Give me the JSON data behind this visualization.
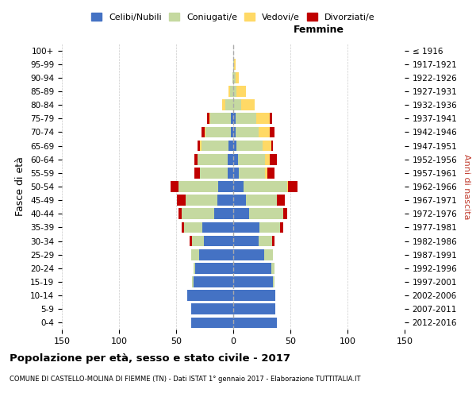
{
  "age_groups": [
    "0-4",
    "5-9",
    "10-14",
    "15-19",
    "20-24",
    "25-29",
    "30-34",
    "35-39",
    "40-44",
    "45-49",
    "50-54",
    "55-59",
    "60-64",
    "65-69",
    "70-74",
    "75-79",
    "80-84",
    "85-89",
    "90-94",
    "95-99",
    "100+"
  ],
  "birth_years": [
    "2012-2016",
    "2007-2011",
    "2002-2006",
    "1997-2001",
    "1992-1996",
    "1987-1991",
    "1982-1986",
    "1977-1981",
    "1972-1976",
    "1967-1971",
    "1962-1966",
    "1957-1961",
    "1952-1956",
    "1947-1951",
    "1942-1946",
    "1937-1941",
    "1932-1936",
    "1927-1931",
    "1922-1926",
    "1917-1921",
    "≤ 1916"
  ],
  "males": {
    "celibi": [
      37,
      37,
      40,
      35,
      33,
      30,
      26,
      27,
      17,
      14,
      13,
      5,
      5,
      4,
      2,
      2,
      0,
      0,
      0,
      0,
      0
    ],
    "coniugati": [
      0,
      0,
      0,
      1,
      2,
      7,
      10,
      16,
      28,
      28,
      35,
      24,
      26,
      24,
      22,
      18,
      7,
      3,
      1,
      0,
      0
    ],
    "vedovi": [
      0,
      0,
      0,
      0,
      0,
      0,
      0,
      0,
      0,
      0,
      0,
      0,
      0,
      1,
      1,
      1,
      3,
      1,
      0,
      0,
      0
    ],
    "divorziati": [
      0,
      0,
      0,
      0,
      0,
      0,
      2,
      2,
      3,
      7,
      7,
      5,
      3,
      2,
      3,
      2,
      0,
      0,
      0,
      0,
      0
    ]
  },
  "females": {
    "nubili": [
      38,
      37,
      37,
      35,
      33,
      27,
      22,
      23,
      14,
      11,
      9,
      5,
      4,
      3,
      2,
      2,
      0,
      0,
      0,
      0,
      0
    ],
    "coniugate": [
      0,
      0,
      0,
      1,
      3,
      8,
      12,
      18,
      30,
      27,
      38,
      23,
      24,
      23,
      20,
      18,
      7,
      3,
      2,
      1,
      0
    ],
    "vedove": [
      0,
      0,
      0,
      0,
      0,
      0,
      0,
      0,
      0,
      0,
      1,
      2,
      4,
      7,
      10,
      12,
      12,
      8,
      3,
      1,
      0
    ],
    "divorziate": [
      0,
      0,
      0,
      0,
      0,
      0,
      2,
      3,
      3,
      7,
      8,
      6,
      6,
      2,
      4,
      2,
      0,
      0,
      0,
      0,
      0
    ]
  },
  "colors": {
    "celibi": "#4472C4",
    "coniugati": "#c5d9a0",
    "vedovi": "#FFD966",
    "divorziati": "#C00000"
  },
  "xlim": 150,
  "title": "Popolazione per età, sesso e stato civile - 2017",
  "subtitle": "COMUNE DI CASTELLO-MOLINA DI FIEMME (TN) - Dati ISTAT 1° gennaio 2017 - Elaborazione TUTTITALIA.IT",
  "ylabel_left": "Fasce di età",
  "ylabel_right": "Anni di nascita",
  "label_femmine": "Femmine",
  "legend_labels": [
    "Celibi/Nubili",
    "Coniugati/e",
    "Vedovi/e",
    "Divorziati/e"
  ],
  "bg_color": "#ffffff",
  "grid_color": "#cccccc"
}
